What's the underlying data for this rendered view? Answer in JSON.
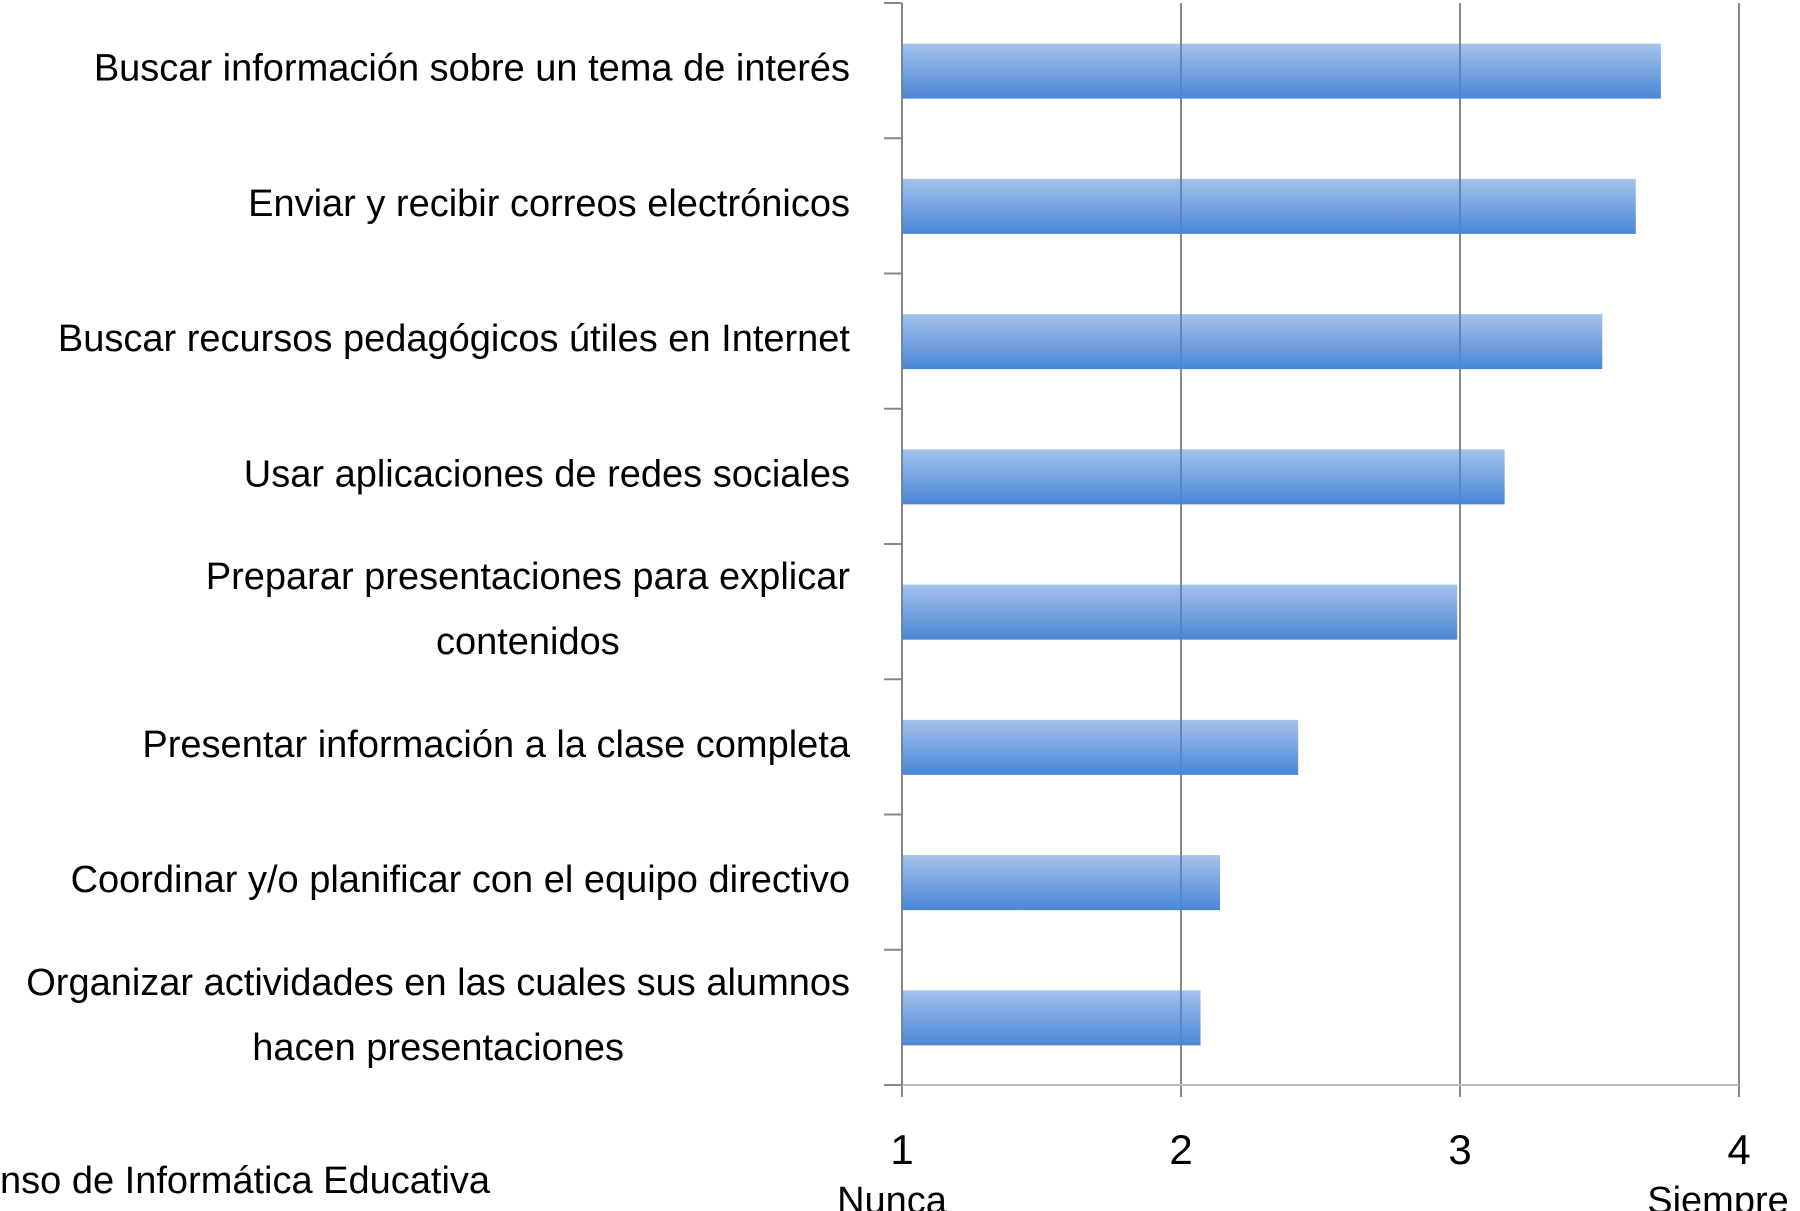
{
  "chart_data": {
    "type": "barh",
    "categories": [
      "Buscar información sobre un tema de interés",
      "Enviar y recibir correos electrónicos",
      "Buscar recursos pedagógicos útiles en Internet",
      "Usar aplicaciones de redes sociales",
      "Preparar presentaciones para explicar contenidos",
      "Presentar información a la clase completa",
      "Coordinar y/o planificar con el equipo directivo",
      "Organizar actividades en las cuales sus alumnos hacen presentaciones"
    ],
    "values": [
      3.72,
      3.63,
      3.51,
      3.16,
      2.99,
      2.42,
      2.14,
      2.07
    ],
    "color": "#4a86d6",
    "xlim": [
      1,
      4
    ],
    "xticks": [
      1,
      2,
      3,
      4
    ],
    "x_axis_annotations": [
      {
        "value": 1,
        "label": "Nunca"
      },
      {
        "value": 4,
        "label": "Siempre"
      }
    ],
    "grid": true,
    "source": "nso de Informática Educativa"
  }
}
